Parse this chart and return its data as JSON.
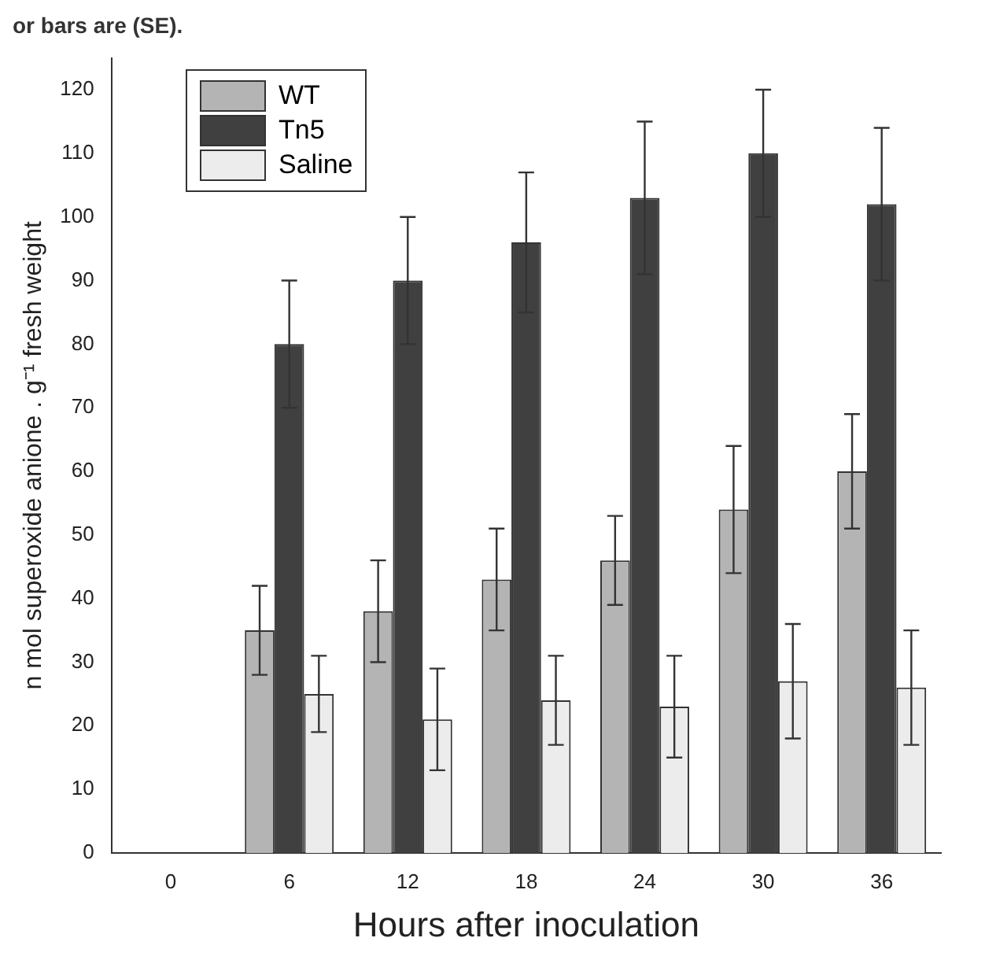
{
  "chart_data": {
    "type": "bar",
    "xlabel": "Hours after inoculation",
    "ylabel": "n mol superoxide anione . g⁻¹ fresh weight",
    "annotations": [
      "or bars are (SE)."
    ],
    "categories": [
      "0",
      "6",
      "12",
      "18",
      "24",
      "30",
      "36"
    ],
    "series": [
      {
        "name": "WT",
        "color": "#b4b4b4",
        "values": [
          null,
          35,
          38,
          43,
          46,
          54,
          60
        ],
        "errors": [
          null,
          7,
          8,
          8,
          7,
          10,
          9
        ]
      },
      {
        "name": "Tn5",
        "color": "#404040",
        "values": [
          null,
          80,
          90,
          96,
          103,
          110,
          102
        ],
        "errors": [
          null,
          10,
          10,
          11,
          12,
          10,
          12
        ]
      },
      {
        "name": "Saline",
        "color": "#ececec",
        "values": [
          null,
          25,
          21,
          24,
          23,
          27,
          26
        ],
        "errors": [
          null,
          6,
          8,
          7,
          8,
          9,
          9
        ]
      }
    ],
    "ylim": [
      0,
      125
    ],
    "yticks": [
      0,
      10,
      20,
      30,
      40,
      50,
      60,
      70,
      80,
      90,
      100,
      110,
      120
    ],
    "grid": false,
    "legend": "top left"
  }
}
